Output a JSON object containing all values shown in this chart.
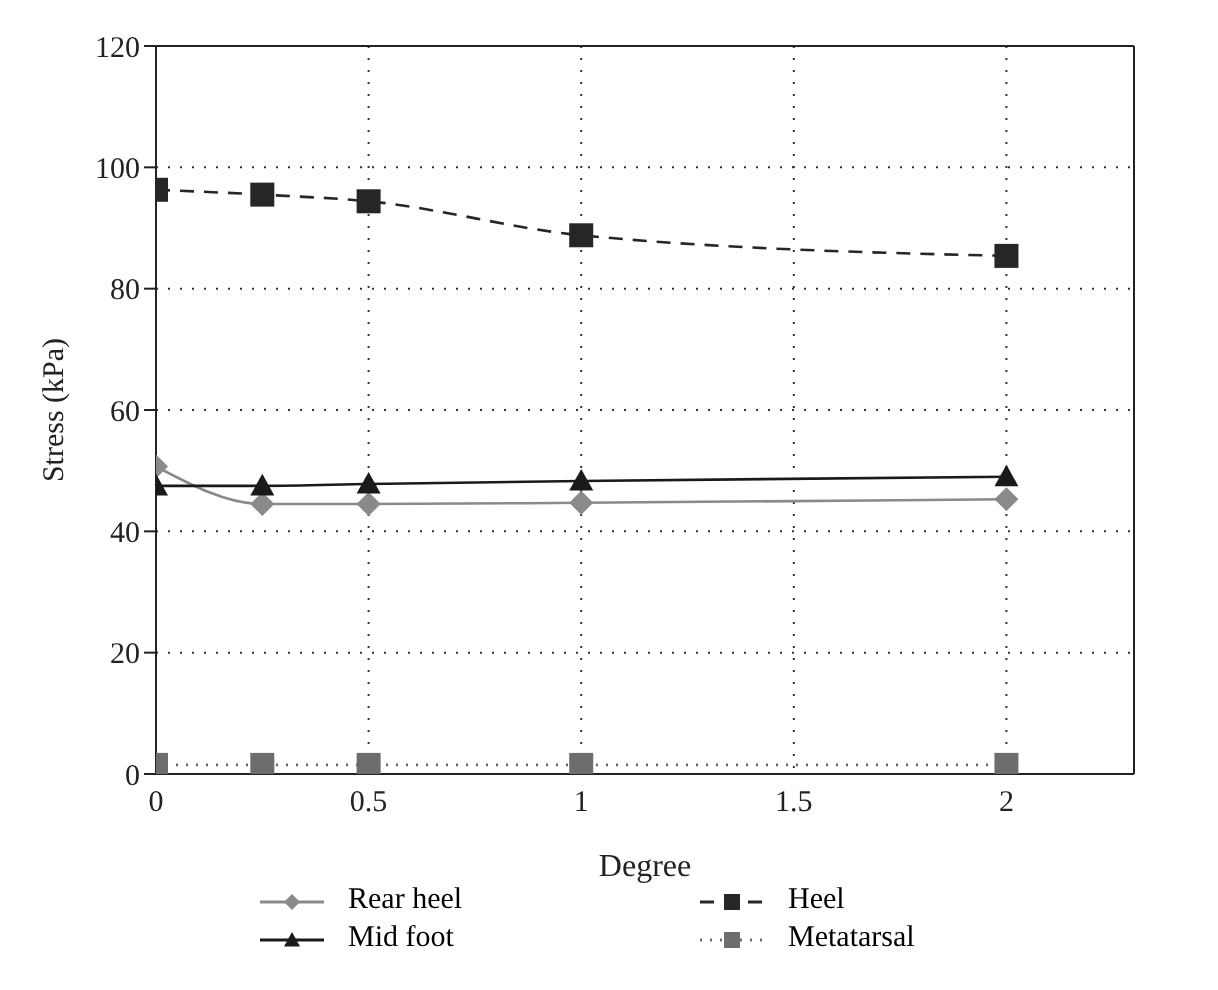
{
  "chart_data": {
    "type": "line",
    "xlabel": "Degree",
    "ylabel": "Stress (kPa)",
    "x": [
      0,
      0.25,
      0.5,
      1,
      2
    ],
    "xlim": [
      0,
      2.3
    ],
    "xticks": [
      0,
      0.5,
      1,
      1.5,
      2
    ],
    "ylim": [
      0,
      120
    ],
    "yticks": [
      0,
      20,
      40,
      60,
      80,
      100,
      120
    ],
    "grid": true,
    "legend": "bottom",
    "series": [
      {
        "name": "Rear heel",
        "color": "#8a8a8a",
        "marker": "diamond",
        "line_style": "solid",
        "values": [
          50.7,
          44.5,
          44.5,
          44.7,
          45.3
        ]
      },
      {
        "name": "Heel",
        "color": "#262626",
        "marker": "square",
        "line_style": "dashed",
        "values": [
          96.3,
          95.5,
          94.4,
          88.8,
          85.4
        ]
      },
      {
        "name": "Mid foot",
        "color": "#1a1a1a",
        "marker": "triangle",
        "line_style": "solid",
        "values": [
          47.5,
          47.5,
          47.8,
          48.3,
          49
        ]
      },
      {
        "name": "Metatarsal",
        "color": "#6d6d6d",
        "marker": "square",
        "line_style": "dotted",
        "values": [
          1.5,
          1.5,
          1.5,
          1.5,
          1.5
        ]
      }
    ]
  }
}
